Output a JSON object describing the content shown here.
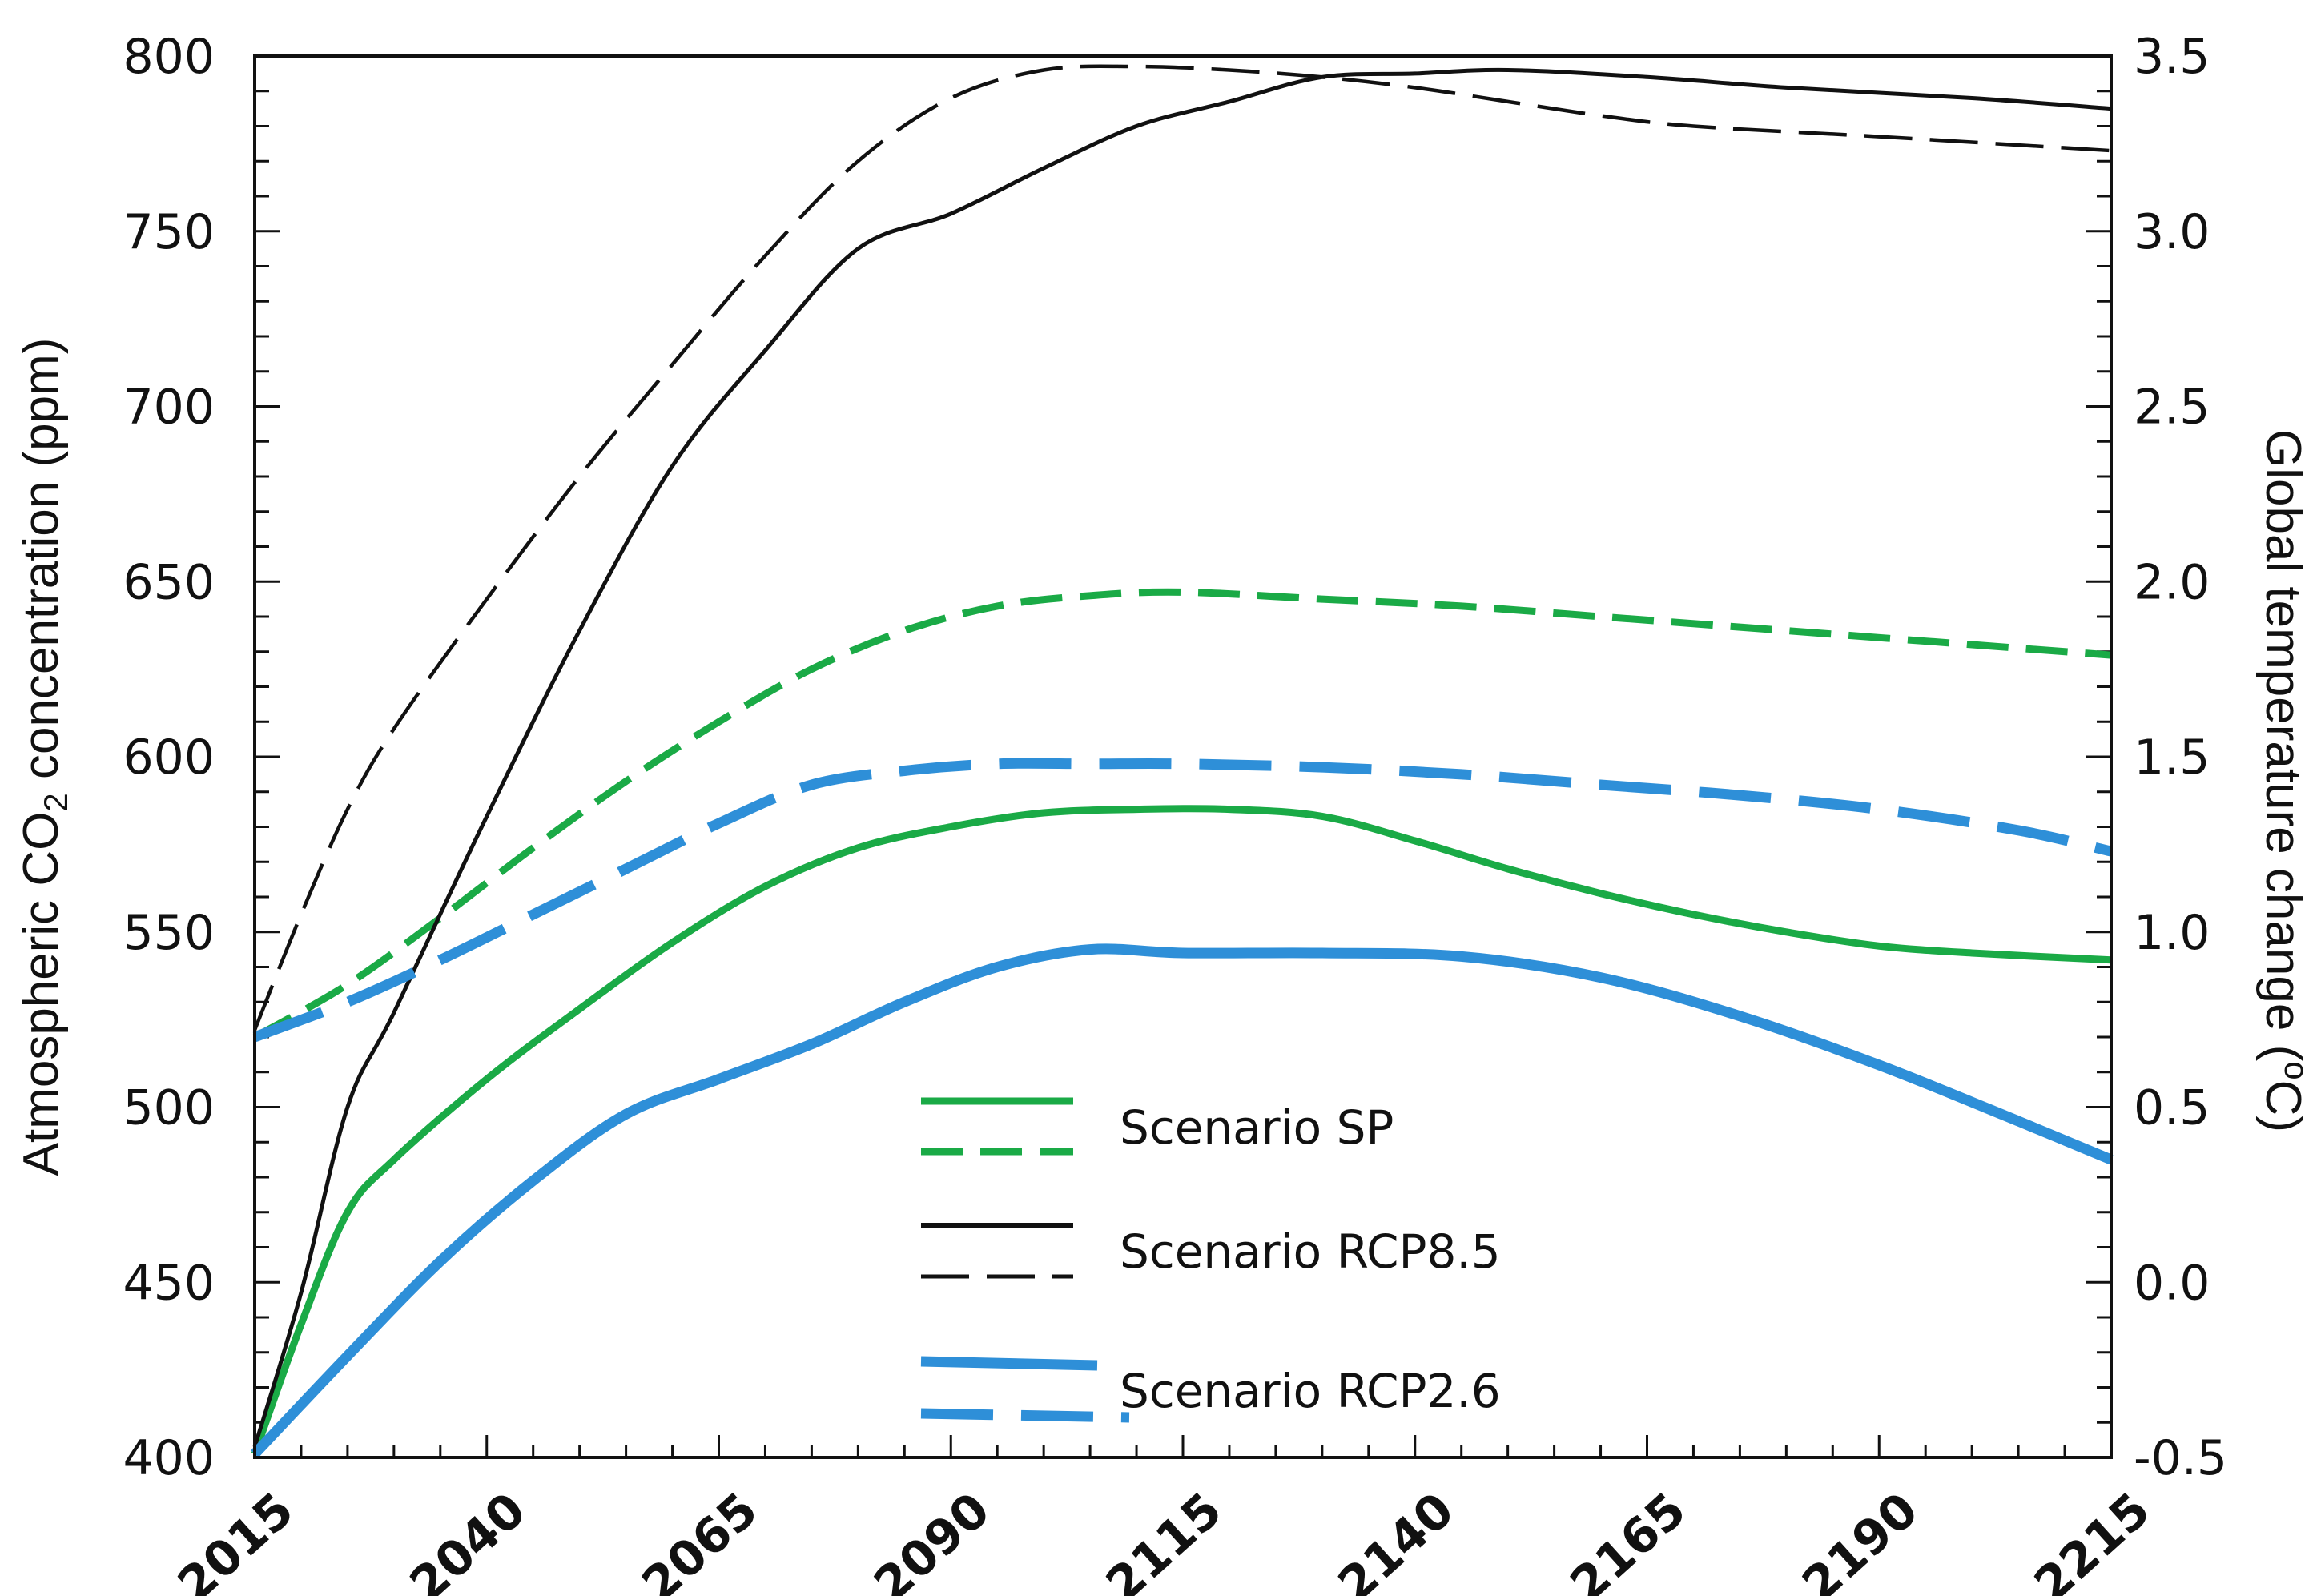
{
  "chart_data": {
    "type": "line",
    "title": "",
    "xlabel": "",
    "x_ticks": [
      "2015",
      "2040",
      "2065",
      "2090",
      "2115",
      "2140",
      "2165",
      "2190",
      "2215"
    ],
    "xlim": [
      2015,
      2215
    ],
    "y_left": {
      "label_parts": [
        "Atmospheric CO",
        "2",
        " concentration (ppm)"
      ],
      "ylim": [
        400,
        800
      ],
      "ticks": [
        "400",
        "450",
        "500",
        "550",
        "600",
        "650",
        "700",
        "750",
        "800"
      ]
    },
    "y_right": {
      "label_parts": [
        "Global temperature change (",
        "o",
        "C)"
      ],
      "ylim": [
        -0.5,
        3.5
      ],
      "ticks": [
        "-0.5",
        "0.0",
        "0.5",
        "1.0",
        "1.5",
        "2.0",
        "2.5",
        "3.0",
        "3.5"
      ]
    },
    "legend": {
      "position": "center-bottom",
      "entries": [
        {
          "label": "Scenario SP",
          "color": "#1aaa46"
        },
        {
          "label": "Scenario RCP8.5",
          "color": "#111111"
        },
        {
          "label": "Scenario RCP2.6",
          "color": "#2e8fd8"
        }
      ]
    },
    "series": [
      {
        "name": "Scenario SP - CO2 concentration (ppm)",
        "axis": "left",
        "style": "solid",
        "color": "#1aaa46",
        "x": [
          2015,
          2020,
          2025,
          2030,
          2040,
          2050,
          2060,
          2070,
          2080,
          2090,
          2100,
          2110,
          2120,
          2130,
          2140,
          2150,
          2160,
          2170,
          2180,
          2190,
          2200,
          2215
        ],
        "y": [
          401,
          438,
          470,
          485,
          508,
          528,
          547,
          563,
          574,
          580,
          584,
          585,
          585,
          583,
          576,
          568,
          561,
          555,
          550,
          546,
          544,
          542
        ]
      },
      {
        "name": "Scenario SP - Global temperature change (°C)",
        "axis": "right",
        "style": "dashed",
        "color": "#1aaa46",
        "x": [
          2015,
          2025,
          2035,
          2045,
          2055,
          2065,
          2075,
          2085,
          2095,
          2105,
          2115,
          2130,
          2145,
          2160,
          2175,
          2190,
          2205,
          2215
        ],
        "y": [
          0.7,
          0.85,
          1.04,
          1.24,
          1.43,
          1.6,
          1.75,
          1.86,
          1.93,
          1.96,
          1.97,
          1.95,
          1.93,
          1.9,
          1.87,
          1.84,
          1.81,
          1.79
        ]
      },
      {
        "name": "Scenario RCP8.5 - CO2 concentration (ppm)",
        "axis": "left",
        "style": "solid",
        "color": "#111111",
        "x": [
          2015,
          2020,
          2025,
          2030,
          2040,
          2050,
          2060,
          2070,
          2080,
          2090,
          2100,
          2110,
          2120,
          2130,
          2140,
          2150,
          2165,
          2180,
          2200,
          2215
        ],
        "y": [
          403,
          447,
          500,
          527,
          583,
          636,
          683,
          716,
          745,
          755,
          768,
          780,
          787,
          794,
          795,
          796,
          794,
          791,
          788,
          785
        ]
      },
      {
        "name": "Scenario RCP8.5 - Global temperature change (°C)",
        "axis": "right",
        "style": "dashed",
        "color": "#111111",
        "x": [
          2015,
          2020,
          2025,
          2030,
          2040,
          2050,
          2060,
          2070,
          2080,
          2090,
          2100,
          2110,
          2120,
          2130,
          2140,
          2150,
          2160,
          2170,
          2190,
          2215
        ],
        "y": [
          0.72,
          1.05,
          1.35,
          1.58,
          1.95,
          2.3,
          2.62,
          2.93,
          3.2,
          3.38,
          3.46,
          3.47,
          3.46,
          3.44,
          3.41,
          3.37,
          3.33,
          3.3,
          3.27,
          3.23
        ]
      },
      {
        "name": "Scenario RCP2.6 - CO2 concentration (ppm)",
        "axis": "left",
        "style": "solid",
        "color": "#2e8fd8",
        "x": [
          2015,
          2025,
          2035,
          2045,
          2055,
          2065,
          2075,
          2085,
          2095,
          2105,
          2115,
          2130,
          2145,
          2160,
          2175,
          2190,
          2205,
          2215
        ],
        "y": [
          401,
          429,
          456,
          479,
          498,
          508,
          518,
          530,
          540,
          545,
          544,
          544,
          543,
          537,
          526,
          512,
          496,
          485
        ]
      },
      {
        "name": "Scenario RCP2.6 - Global temperature change (°C)",
        "axis": "right",
        "style": "dashed",
        "color": "#2e8fd8",
        "x": [
          2015,
          2025,
          2035,
          2045,
          2055,
          2065,
          2075,
          2085,
          2095,
          2105,
          2115,
          2130,
          2145,
          2160,
          2175,
          2190,
          2205,
          2215
        ],
        "y": [
          0.7,
          0.8,
          0.92,
          1.05,
          1.18,
          1.31,
          1.42,
          1.46,
          1.48,
          1.48,
          1.48,
          1.47,
          1.45,
          1.42,
          1.39,
          1.35,
          1.29,
          1.23
        ]
      }
    ]
  }
}
